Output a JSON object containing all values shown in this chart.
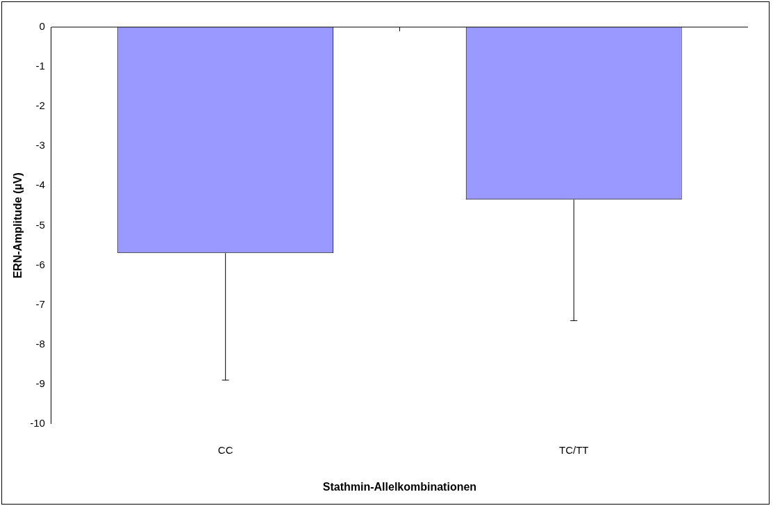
{
  "chart_data": {
    "type": "bar",
    "xlabel": "Stathmin-Allelkombinationen",
    "ylabel": "ERN-Amplitude (µV)",
    "categories": [
      "CC",
      "TC/TT"
    ],
    "values": [
      -5.7,
      -4.35
    ],
    "errors": [
      [
        -8.9,
        -5.7
      ],
      [
        -7.4,
        -4.35
      ]
    ],
    "color": "#9999ff",
    "ylim": [
      -10,
      0
    ],
    "yticks": [
      -10,
      -9,
      -8,
      -7,
      -6,
      -5,
      -4,
      -3,
      -2,
      -1,
      0
    ],
    "grid": false,
    "legend": false
  }
}
